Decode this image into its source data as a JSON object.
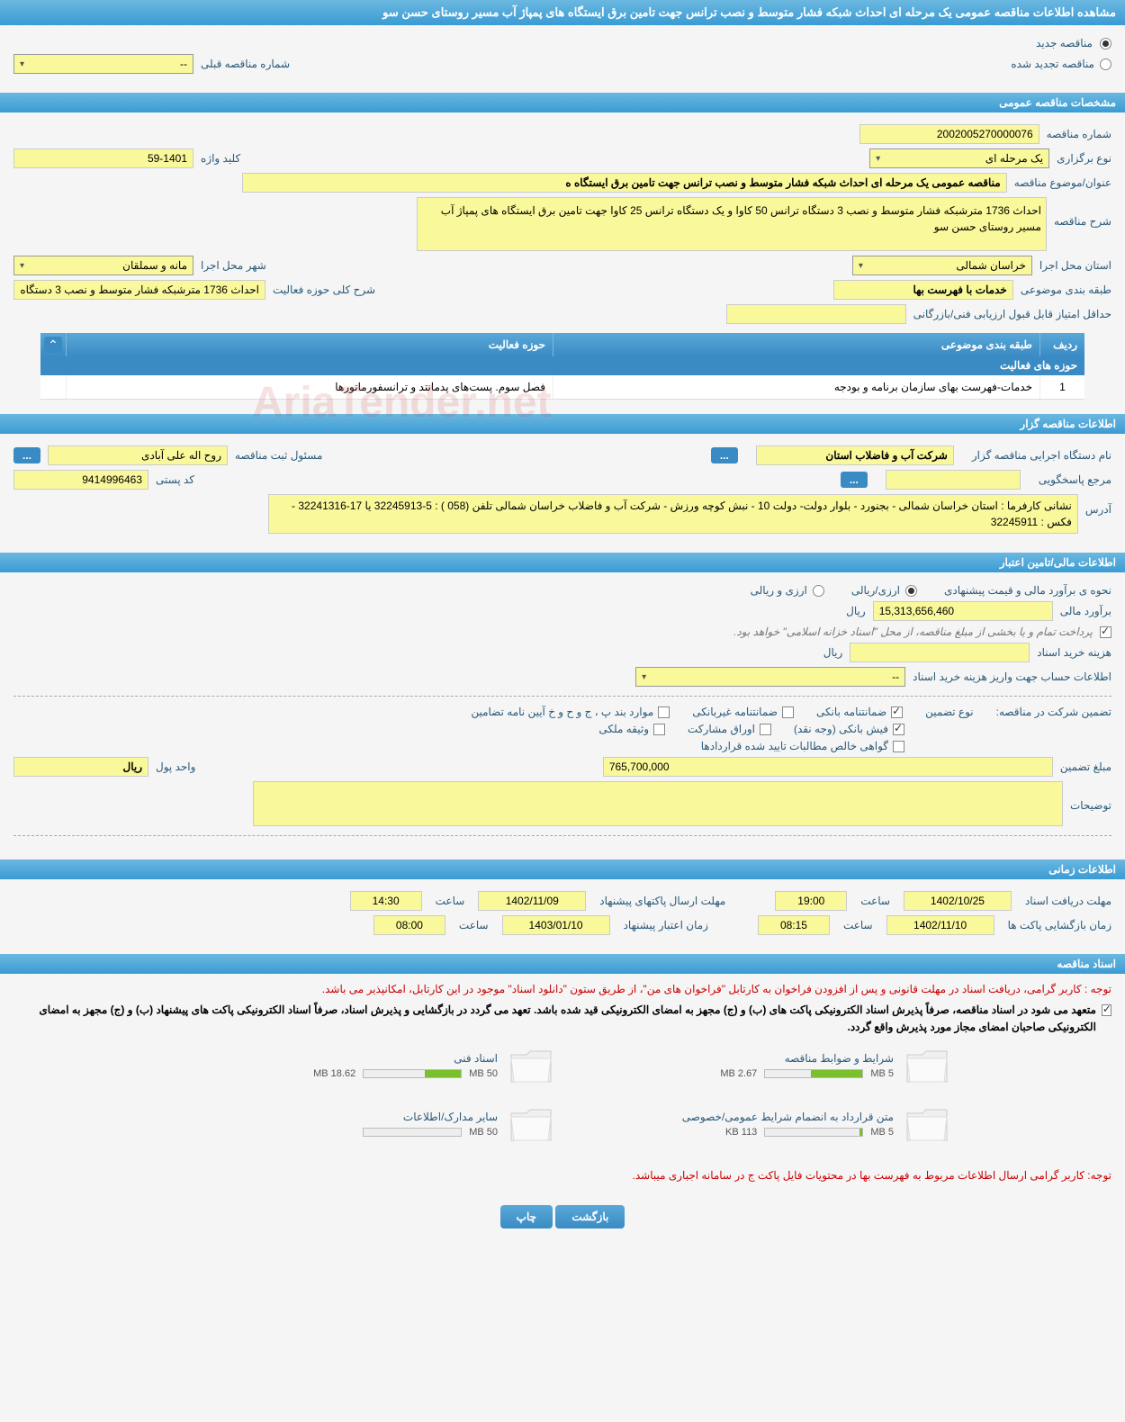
{
  "colors": {
    "header_gradient_top": "#6bb8e0",
    "header_gradient_bottom": "#3a9bd4",
    "button_gradient_top": "#5aa8d8",
    "button_gradient_bottom": "#3a8bc4",
    "field_bg": "#f9f89a",
    "label_color": "#2a5a7a",
    "red": "#c00",
    "progress_fill": "#7abf2c",
    "page_bg": "#f5f5f5"
  },
  "page_title": "مشاهده اطلاعات مناقصه عمومی یک مرحله ای احداث شبکه فشار متوسط و نصب ترانس جهت تامین برق ایستگاه های پمپاژ آب مسیر روستای حسن سو",
  "tender_type": {
    "new_label": "مناقصه جدید",
    "renewed_label": "مناقصه تجدید شده",
    "checked": "new",
    "prev_number_label": "شماره مناقصه قبلی",
    "prev_number_value": "--"
  },
  "sections": {
    "general": "مشخصات مناقصه عمومی",
    "organizer": "اطلاعات مناقصه گزار",
    "financial": "اطلاعات مالی/تامین اعتبار",
    "timing": "اطلاعات زمانی",
    "documents": "اسناد مناقصه"
  },
  "general": {
    "tender_number_label": "شماره مناقصه",
    "tender_number": "2002005270000076",
    "holding_type_label": "نوع برگزاری",
    "holding_type": "یک مرحله ای",
    "keyword_label": "کلید واژه",
    "keyword": "59-1401",
    "title_label": "عنوان/موضوع مناقصه",
    "title": "مناقصه عمومی یک مرحله ای احداث شبکه فشار متوسط و نصب  ترانس  جهت تامین برق ایستگاه ه",
    "desc_label": "شرح مناقصه",
    "desc": "احداث 1736 مترشبکه فشار متوسط و نصب 3 دستگاه ترانس 50 کاوا و یک دستگاه ترانس 25 کاوا جهت تامین برق ایستگاه های پمپاژ آب مسیر روستای حسن سو",
    "province_label": "استان محل اجرا",
    "province": "خراسان شمالی",
    "city_label": "شهر محل اجرا",
    "city": "مانه و سملقان",
    "category_label": "طبقه بندی موضوعی",
    "category": "خدمات با فهرست بها",
    "activity_summary_label": "شرح کلی حوزه فعالیت",
    "activity_summary": "احداث 1736 مترشبکه فشار متوسط و نصب 3 دستگاه",
    "min_score_label": "حداقل امتیاز قابل قبول ارزیابی فنی/بازرگانی",
    "min_score": ""
  },
  "activity_table": {
    "title": "حوزه های فعالیت",
    "headers": {
      "row": "ردیف",
      "category": "طبقه بندی موضوعی",
      "field": "حوزه فعالیت"
    },
    "rows": [
      {
        "row": "1",
        "category": "خدمات-فهرست بهای سازمان برنامه و بودجه",
        "field": "فصل سوم. پست‌های ‌پدمانتد و ترانسفورماتورها"
      }
    ]
  },
  "organizer": {
    "exec_label": "نام دستگاه اجرایی مناقصه گزار",
    "exec_name": "شرکت آب و فاضلاب استان",
    "registrar_label": "مسئول ثبت مناقصه",
    "registrar": "روح اله  علی آبادی",
    "responder_label": "مرجع پاسخگویی",
    "responder": "",
    "postal_label": "کد پستی",
    "postal": "9414996463",
    "address_label": "آدرس",
    "address": "نشانی کارفرما : استان خراسان شمالی - بجنورد - بلوار دولت- دولت 10 - نبش کوچه ورزش - شرکت آب و فاضلاب خراسان شمالی تلفن (058 ) : 5-32245913  یا  17-32241316 -  فکس : 32245911"
  },
  "financial": {
    "method_label": "نحوه ی برآورد مالی و قیمت پیشنهادی",
    "method_option1": "ارزی/ریالی",
    "method_option2": "ارزی و ریالی",
    "method_checked": "option1",
    "estimate_label": "برآورد مالی",
    "estimate_value": "15,313,656,460",
    "currency": "ریال",
    "treasury_note": "پرداخت تمام و یا بخشی از مبلغ مناقصه، از محل \"اسناد خزانه اسلامی\" خواهد بود.",
    "doc_fee_label": "هزینه خرید اسناد",
    "doc_fee_value": "",
    "account_info_label": "اطلاعات حساب جهت واریز هزینه خرید اسناد",
    "account_info_value": "--",
    "guarantee_label": "تضمین شرکت در مناقصه:",
    "guarantee_type_label": "نوع تضمین",
    "guarantee_options": {
      "bank_guarantee": {
        "label": "ضمانتنامه بانکی",
        "checked": true
      },
      "nonbank_guarantee": {
        "label": "ضمانتنامه غیربانکی",
        "checked": false
      },
      "clauses": {
        "label": "موارد بند پ ، ج و ح و خ آیین نامه تضامین",
        "checked": false
      },
      "bank_receipt": {
        "label": "فیش بانکی (وجه نقد)",
        "checked": true
      },
      "securities": {
        "label": "اوراق مشارکت",
        "checked": false
      },
      "property": {
        "label": "وثیقه ملکی",
        "checked": false
      },
      "receivables": {
        "label": "گواهی خالص مطالبات تایید شده قراردادها",
        "checked": false
      }
    },
    "guarantee_amount_label": "مبلغ تضمین",
    "guarantee_amount": "765,700,000",
    "unit_label": "واحد پول",
    "unit_value": "ریال",
    "notes_label": "توضیحات",
    "notes_value": ""
  },
  "timing": {
    "receive_deadline_label": "مهلت دریافت اسناد",
    "receive_date": "1402/10/25",
    "receive_time_label": "ساعت",
    "receive_time": "19:00",
    "send_deadline_label": "مهلت ارسال پاکتهای پیشنهاد",
    "send_date": "1402/11/09",
    "send_time": "14:30",
    "open_label": "زمان بازگشایی پاکت ها",
    "open_date": "1402/11/10",
    "open_time": "08:15",
    "validity_label": "زمان اعتبار پیشنهاد",
    "validity_date": "1403/01/10",
    "validity_time": "08:00"
  },
  "documents": {
    "note1": "توجه : کاربر گرامی، دریافت اسناد در مهلت قانونی و پس از افزودن فراخوان به کارتابل \"فراخوان های من\"، از طریق ستون \"دانلود اسناد\" موجود در این کارتابل، امکانپذیر می باشد.",
    "note2": "متعهد می شود در اسناد مناقصه، صرفاً پذیرش اسناد الکترونیکی پاکت های (ب) و (ج) مجهز به امضای الکترونیکی قید شده باشد. تعهد می گردد در بازگشایی و پذیرش اسناد، صرفاً اسناد الکترونیکی پاکت های پیشنهاد (ب) و (ج) مجهز به امضای الکترونیکی صاحبان امضای مجاز مورد پذیرش واقع گردد.",
    "note3": "توجه: کاربر گرامی ارسال اطلاعات مربوط به فهرست بها در محتویات فایل پاکت ج در سامانه اجباری میباشد.",
    "files": [
      {
        "title": "شرایط و ضوابط مناقصه",
        "size": "2.67 MB",
        "quota": "5 MB",
        "fill_pct": 53
      },
      {
        "title": "اسناد فنی",
        "size": "18.62 MB",
        "quota": "50 MB",
        "fill_pct": 37
      },
      {
        "title": "متن قرارداد به انضمام شرایط عمومی/خصوصی",
        "size": "113 KB",
        "quota": "5 MB",
        "fill_pct": 3
      },
      {
        "title": "سایر مدارک/اطلاعات",
        "size": "",
        "quota": "50 MB",
        "fill_pct": 0
      }
    ]
  },
  "buttons": {
    "back": "بازگشت",
    "print": "چاپ"
  },
  "watermark": "AriaTender.net"
}
